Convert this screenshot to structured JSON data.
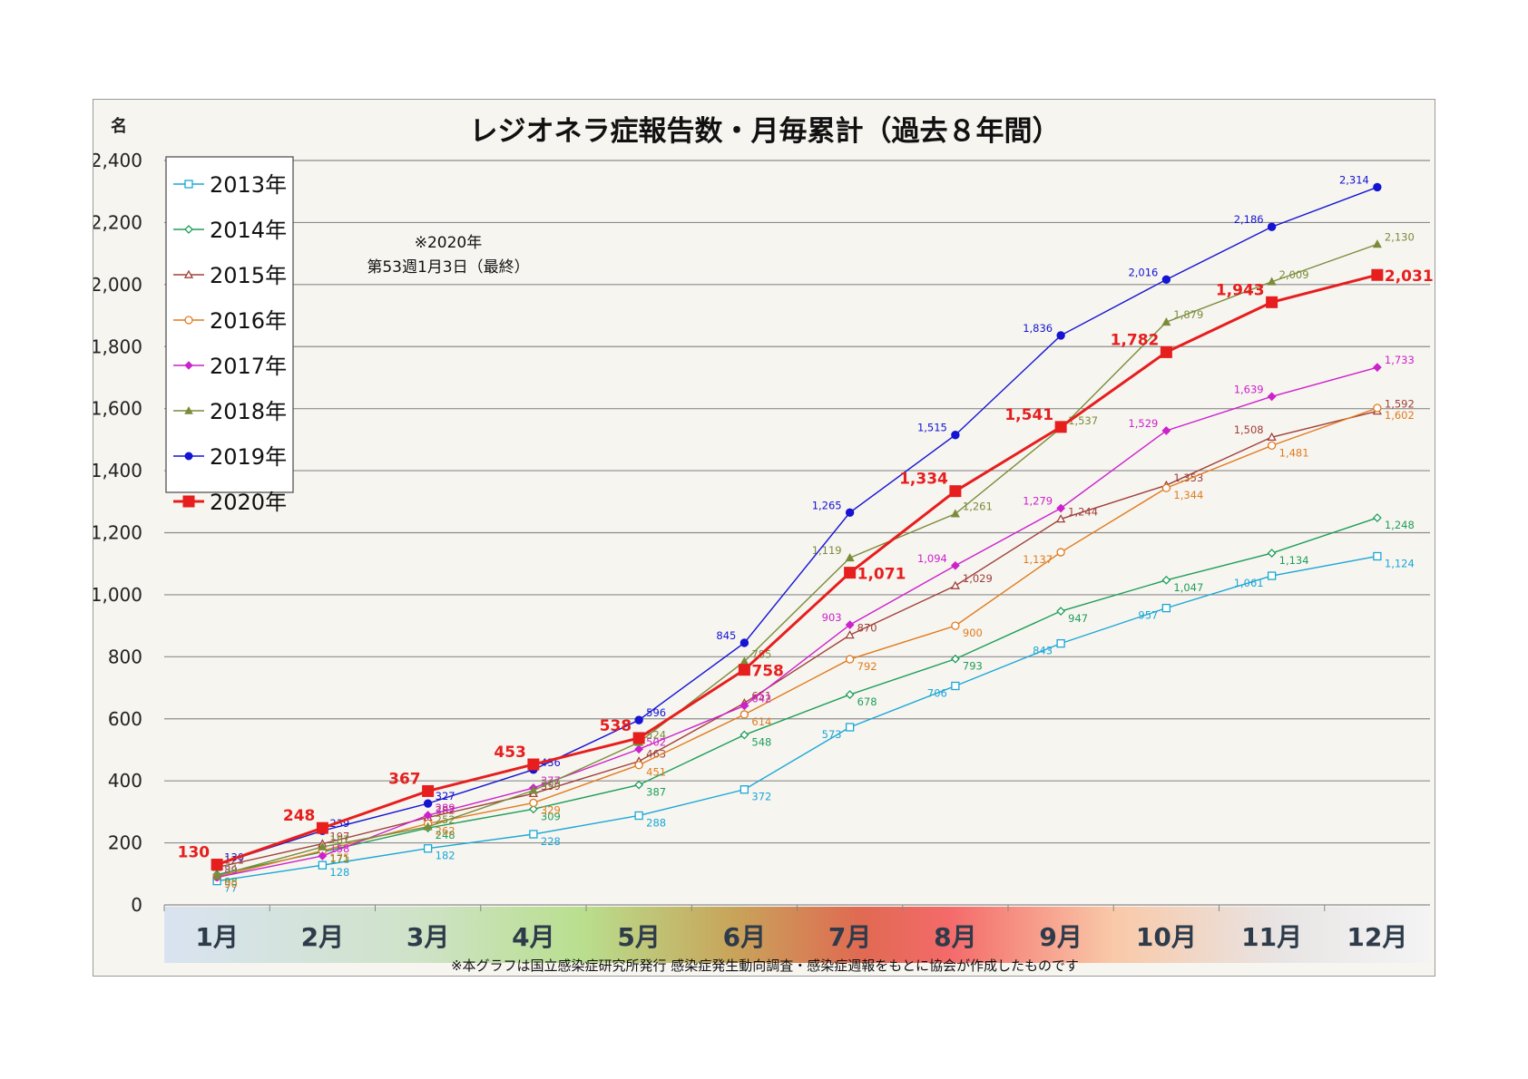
{
  "chart_data": {
    "type": "line",
    "title": "レジオネラ症報告数・月毎累計（過去８年間）",
    "ylabel": "名",
    "note": [
      "※2020年",
      "第53週1月3日（最終）"
    ],
    "footer": "※本グラフは国立感染症研究所発行 感染症発生動向調査・感染症週報をもとに協会が作成したものです",
    "categories": [
      "1月",
      "2月",
      "3月",
      "4月",
      "5月",
      "6月",
      "7月",
      "8月",
      "9月",
      "10月",
      "11月",
      "12月"
    ],
    "ylim": [
      0,
      2400
    ],
    "yticks": [
      "0",
      "200",
      "400",
      "600",
      "800",
      "1,000",
      "1,200",
      "1,400",
      "1,600",
      "1,800",
      "2,000",
      "2,200",
      "2,400"
    ],
    "grid": true,
    "legend_position": "top-left",
    "series": [
      {
        "name": "2013年",
        "color": "#1aa7d6",
        "marker": "square-open",
        "values": [
          77,
          128,
          182,
          228,
          288,
          372,
          573,
          706,
          843,
          957,
          1061,
          1124
        ],
        "labels": [
          "77",
          "128",
          "182",
          "228",
          "288",
          "372",
          "573",
          "706",
          "843",
          "957",
          "1,061",
          "1,124"
        ]
      },
      {
        "name": "2014年",
        "color": "#1e9e5a",
        "marker": "diamond-open",
        "values": [
          98,
          171,
          248,
          309,
          387,
          548,
          678,
          793,
          947,
          1047,
          1134,
          1248
        ],
        "labels": [
          "98",
          "171",
          "248",
          "309",
          "387",
          "548",
          "678",
          "793",
          "947",
          "1,047",
          "1,134",
          "1,248"
        ]
      },
      {
        "name": "2015年",
        "color": "#a0403a",
        "marker": "triangle-open",
        "values": [
          121,
          197,
          282,
          359,
          463,
          651,
          870,
          1029,
          1244,
          1353,
          1508,
          1592
        ],
        "labels": [
          "121",
          "197",
          "282",
          "359",
          "463",
          "651",
          "870",
          "1,029",
          "1,244",
          "1,353",
          "1,508",
          "1,592"
        ]
      },
      {
        "name": "2016年",
        "color": "#e07b1f",
        "marker": "circle-open",
        "values": [
          90,
          175,
          262,
          329,
          451,
          614,
          792,
          900,
          1137,
          1344,
          1481,
          1602
        ],
        "labels": [
          "90",
          "175",
          "262",
          "329",
          "451",
          "614",
          "792",
          "900",
          "1,137",
          "1,344",
          "1,481",
          "1,602"
        ]
      },
      {
        "name": "2017年",
        "color": "#cc22cc",
        "marker": "diamond",
        "values": [
          89,
          158,
          289,
          377,
          502,
          642,
          903,
          1094,
          1279,
          1529,
          1639,
          1733
        ],
        "labels": [
          "89",
          "158",
          "289",
          "377",
          "502",
          "642",
          "903",
          "1,094",
          "1,279",
          "1,529",
          "1,639",
          "1,733"
        ]
      },
      {
        "name": "2018年",
        "color": "#7a8c3a",
        "marker": "triangle",
        "values": [
          94,
          187,
          252,
          369,
          524,
          785,
          1119,
          1261,
          1537,
          1879,
          2009,
          2130
        ],
        "labels": [
          "94",
          "187",
          "252",
          "369",
          "524",
          "785",
          "1,119",
          "1,261",
          "1,537",
          "1,879",
          "2,009",
          "2,130"
        ]
      },
      {
        "name": "2019年",
        "color": "#1414d2",
        "marker": "circle",
        "values": [
          130,
          239,
          327,
          436,
          596,
          845,
          1265,
          1515,
          1836,
          2016,
          2186,
          2314
        ],
        "labels": [
          "130",
          "239",
          "327",
          "436",
          "596",
          "845",
          "1,265",
          "1,515",
          "1,836",
          "2,016",
          "2,186",
          "2,314"
        ]
      },
      {
        "name": "2020年",
        "color": "#e61e1e",
        "marker": "square",
        "values": [
          130,
          248,
          367,
          453,
          538,
          758,
          1071,
          1334,
          1541,
          1782,
          1943,
          2031
        ],
        "labels": [
          "130",
          "248",
          "367",
          "453",
          "538",
          "758",
          "1,071",
          "1,334",
          "1,541",
          "1,782",
          "1,943",
          "2,031"
        ]
      }
    ]
  }
}
